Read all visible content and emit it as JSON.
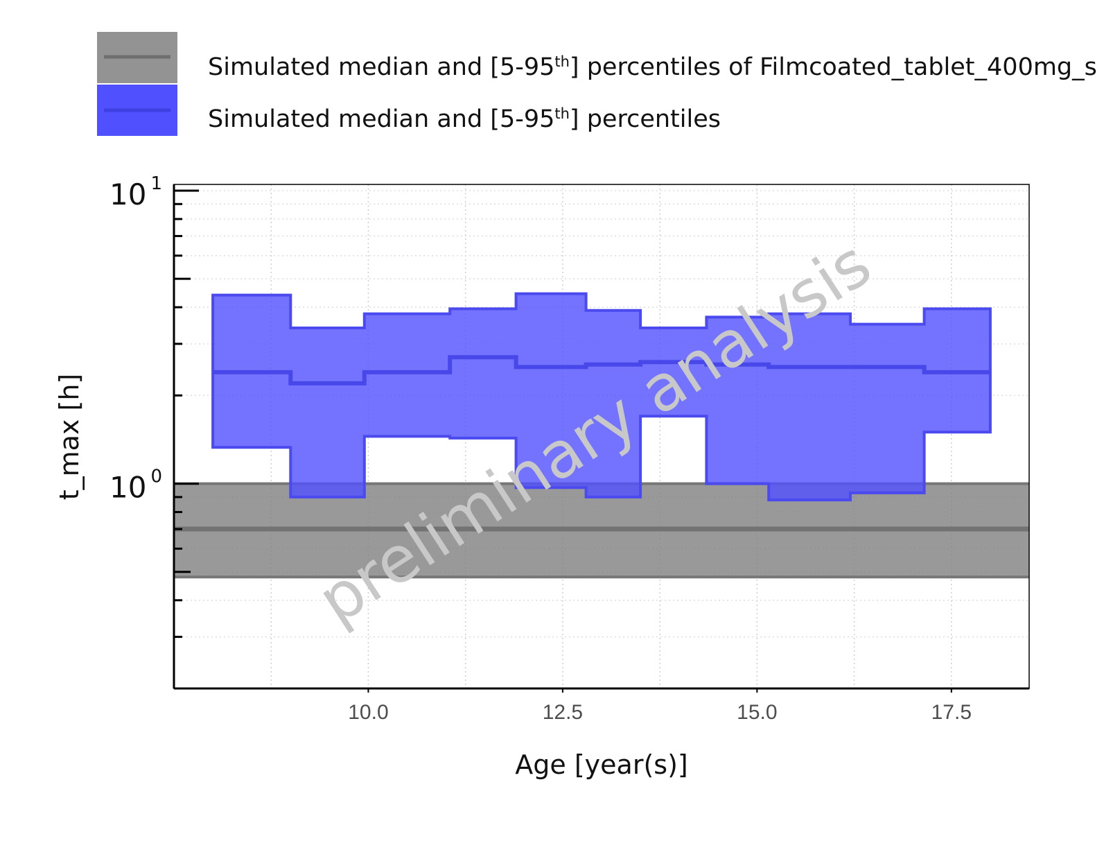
{
  "chart_data": {
    "type": "area",
    "xlabel": "Age [year(s)]",
    "ylabel": "t_max [h]",
    "xlim": [
      7.5,
      18.5
    ],
    "ylim": [
      0.2,
      10.5
    ],
    "log_y": true,
    "grid": true,
    "legend_position": "top",
    "x_ticks": [
      "10.0",
      "12.5",
      "15.0",
      "17.5"
    ],
    "x_tick_values": [
      10.0,
      12.5,
      15.0,
      17.5
    ],
    "y_ticks": [
      {
        "value": 1,
        "base": "10",
        "exp": "0"
      },
      {
        "value": 10,
        "base": "10",
        "exp": "1"
      }
    ],
    "watermark": "preliminary analysis",
    "legend": [
      {
        "pre": "Simulated median and [5-95",
        "sup": "th",
        "post": "] percentiles of Filmcoated_tablet_400mg_s",
        "color": "#808080"
      },
      {
        "pre": "Simulated median and [5-95",
        "sup": "th",
        "post": "] percentiles",
        "color": "#5050ff"
      }
    ],
    "series": [
      {
        "color": "#808080",
        "x_range": [
          7.5,
          18.5
        ],
        "median": 0.7,
        "p05": 0.48,
        "p95": 1.0
      },
      {
        "color": "#5050ff",
        "bins": [
          {
            "x0": 8.0,
            "x1": 9.0,
            "median": 2.4,
            "p05": 1.33,
            "p95": 4.4
          },
          {
            "x0": 9.0,
            "x1": 9.95,
            "median": 2.2,
            "p05": 0.9,
            "p95": 3.4
          },
          {
            "x0": 9.95,
            "x1": 11.05,
            "median": 2.4,
            "p05": 1.45,
            "p95": 3.8
          },
          {
            "x0": 11.05,
            "x1": 11.9,
            "median": 2.7,
            "p05": 1.43,
            "p95": 3.95
          },
          {
            "x0": 11.9,
            "x1": 12.8,
            "median": 2.5,
            "p05": 0.97,
            "p95": 4.45
          },
          {
            "x0": 12.8,
            "x1": 13.5,
            "median": 2.55,
            "p05": 0.9,
            "p95": 3.9
          },
          {
            "x0": 13.5,
            "x1": 14.35,
            "median": 2.6,
            "p05": 1.7,
            "p95": 3.4
          },
          {
            "x0": 14.35,
            "x1": 15.15,
            "median": 2.55,
            "p05": 1.0,
            "p95": 3.7
          },
          {
            "x0": 15.15,
            "x1": 16.2,
            "median": 2.5,
            "p05": 0.88,
            "p95": 3.8
          },
          {
            "x0": 16.2,
            "x1": 17.15,
            "median": 2.5,
            "p05": 0.93,
            "p95": 3.5
          },
          {
            "x0": 17.15,
            "x1": 18.0,
            "median": 2.4,
            "p05": 1.5,
            "p95": 3.95
          }
        ]
      }
    ]
  }
}
